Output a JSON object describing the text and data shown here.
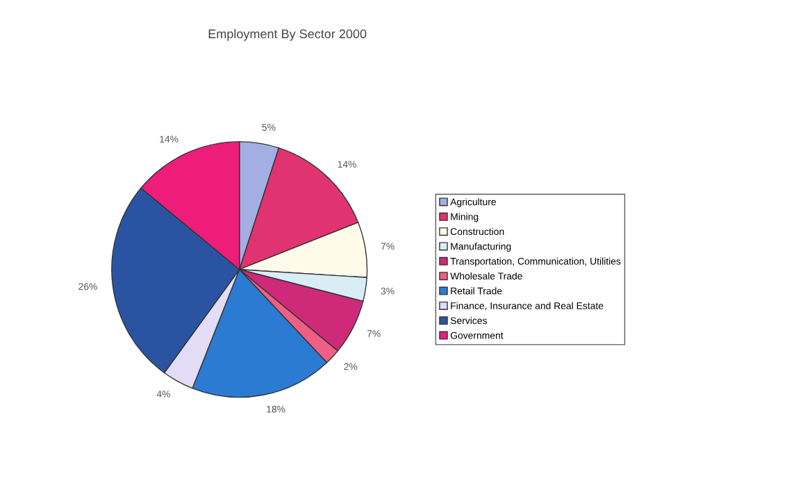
{
  "chart_data": {
    "type": "pie",
    "title": "Employment By Sector 2000",
    "categories": [
      "Agriculture",
      "Mining",
      "Construction",
      "Manufacturing",
      "Transportation, Communication, Utilities",
      "Wholesale Trade",
      "Retail Trade",
      "Finance, Insurance and Real Estate",
      "Services",
      "Government"
    ],
    "values": [
      5,
      14,
      7,
      3,
      7,
      2,
      18,
      4,
      26,
      14
    ],
    "value_labels": [
      "5%",
      "14%",
      "7%",
      "3%",
      "7%",
      "2%",
      "18%",
      "4%",
      "26%",
      "14%"
    ],
    "colors": [
      "#a3aee3",
      "#e0336f",
      "#fffbea",
      "#d9edf7",
      "#cf2a7a",
      "#ef5f84",
      "#2b7bd2",
      "#e2dcf7",
      "#2a54a2",
      "#ee1c7a"
    ],
    "legend": "right"
  }
}
